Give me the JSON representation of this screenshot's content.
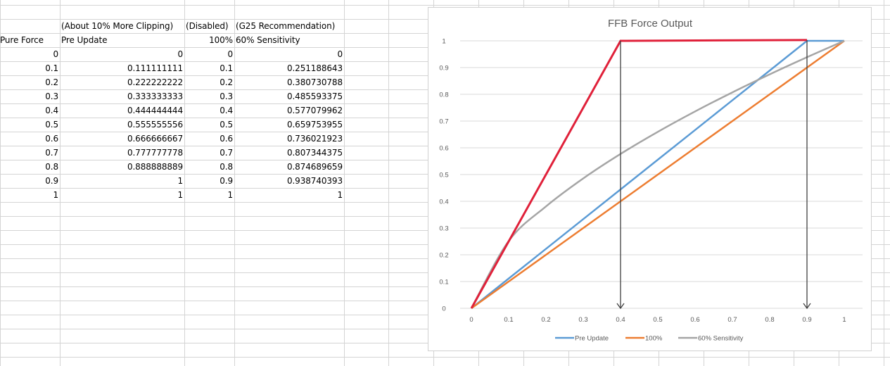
{
  "sheet": {
    "header_row1": [
      "",
      "(About 10% More Clipping)",
      "(Disabled)",
      "(G25 Recommendation)"
    ],
    "header_row2": [
      "Pure Force",
      "Pre Update",
      "100%",
      "60% Sensitivity"
    ],
    "rows": [
      [
        "0",
        "0",
        "0",
        "0"
      ],
      [
        "0.1",
        "0.111111111",
        "0.1",
        "0.251188643"
      ],
      [
        "0.2",
        "0.222222222",
        "0.2",
        "0.380730788"
      ],
      [
        "0.3",
        "0.333333333",
        "0.3",
        "0.485593375"
      ],
      [
        "0.4",
        "0.444444444",
        "0.4",
        "0.577079962"
      ],
      [
        "0.5",
        "0.555555556",
        "0.5",
        "0.659753955"
      ],
      [
        "0.6",
        "0.666666667",
        "0.6",
        "0.736021923"
      ],
      [
        "0.7",
        "0.777777778",
        "0.7",
        "0.807344375"
      ],
      [
        "0.8",
        "0.888888889",
        "0.8",
        "0.874689659"
      ],
      [
        "0.9",
        "1",
        "0.9",
        "0.938740393"
      ],
      [
        "1",
        "1",
        "1",
        "1"
      ]
    ]
  },
  "chart_data": {
    "type": "line",
    "title": "FFB Force Output",
    "x": [
      0,
      0.1,
      0.2,
      0.3,
      0.4,
      0.5,
      0.6,
      0.7,
      0.8,
      0.9,
      1
    ],
    "x_ticks": [
      "0",
      "0.1",
      "0.2",
      "0.3",
      "0.4",
      "0.5",
      "0.6",
      "0.7",
      "0.8",
      "0.9",
      "1"
    ],
    "y_ticks": [
      "0",
      "0.1",
      "0.2",
      "0.3",
      "0.4",
      "0.5",
      "0.6",
      "0.7",
      "0.8",
      "0.9",
      "1"
    ],
    "xlim": [
      0,
      1
    ],
    "ylim": [
      0,
      1
    ],
    "grid": true,
    "legend_position": "bottom",
    "series": [
      {
        "name": "Pre Update",
        "color": "#5b9bd5",
        "values": [
          0,
          0.111111111,
          0.222222222,
          0.333333333,
          0.444444444,
          0.555555556,
          0.666666667,
          0.777777778,
          0.888888889,
          1,
          1
        ]
      },
      {
        "name": "100%",
        "color": "#ed7d31",
        "values": [
          0,
          0.1,
          0.2,
          0.3,
          0.4,
          0.5,
          0.6,
          0.7,
          0.8,
          0.9,
          1
        ]
      },
      {
        "name": "60% Sensitivity",
        "color": "#a5a5a5",
        "values": [
          0,
          0.251188643,
          0.380730788,
          0.485593375,
          0.577079962,
          0.659753955,
          0.736021923,
          0.807344375,
          0.874689659,
          0.938740393,
          1
        ]
      }
    ],
    "annotation_line": {
      "color": "#e0213a",
      "points": [
        [
          0,
          0
        ],
        [
          0.4,
          1
        ],
        [
          0.9,
          1.003
        ]
      ]
    },
    "annotation_arrows": [
      {
        "x": 0.4,
        "from_y": 1,
        "to_y": 0,
        "color": "#404040"
      },
      {
        "x": 0.9,
        "from_y": 1.003,
        "to_y": 0,
        "color": "#404040"
      }
    ]
  }
}
